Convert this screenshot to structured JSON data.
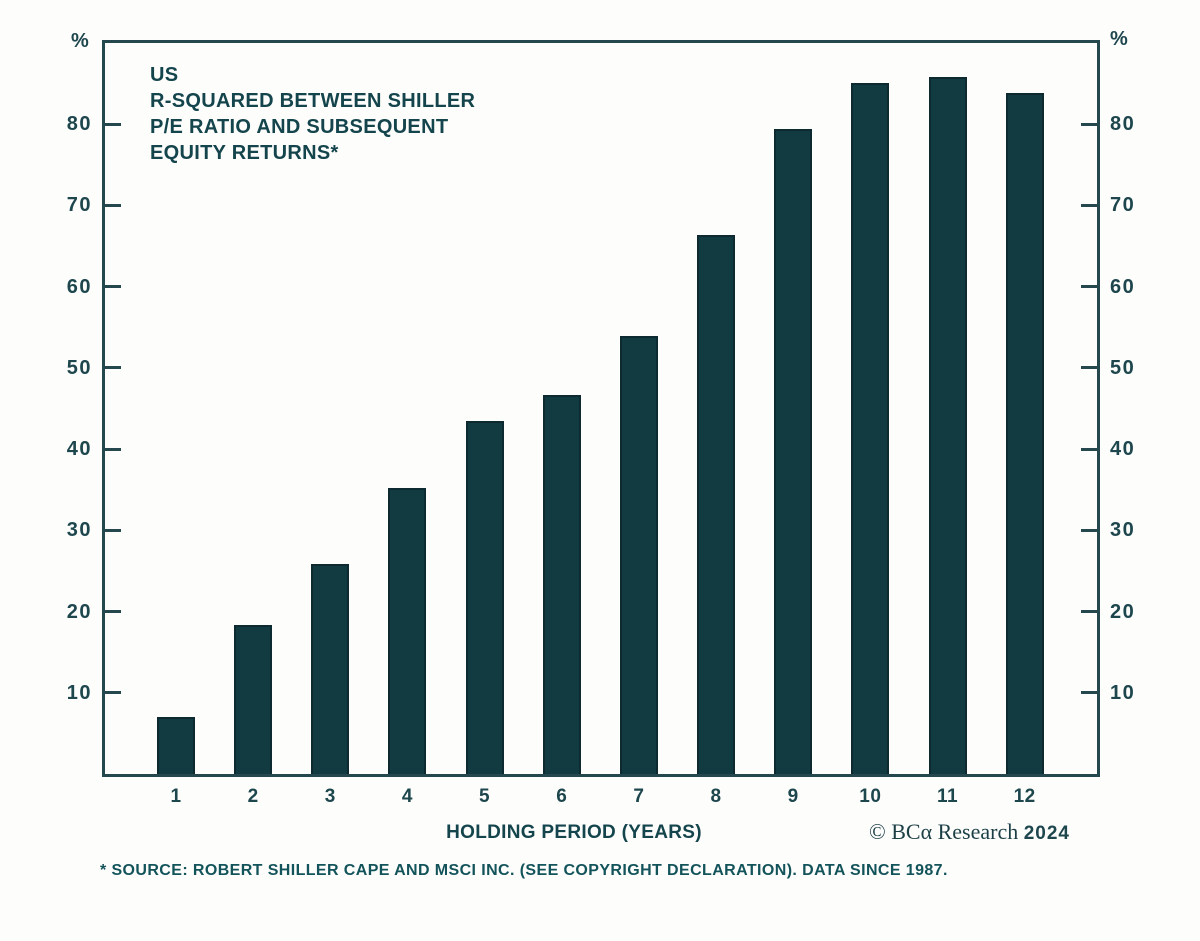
{
  "chart_data": {
    "type": "bar",
    "title_lines": [
      "US",
      "R-SQUARED BETWEEN SHILLER",
      "P/E RATIO AND SUBSEQUENT",
      "EQUITY RETURNS*"
    ],
    "categories": [
      "1",
      "2",
      "3",
      "4",
      "5",
      "6",
      "7",
      "8",
      "9",
      "10",
      "11",
      "12"
    ],
    "values": [
      7.0,
      18.3,
      25.9,
      35.2,
      43.5,
      46.7,
      53.9,
      66.4,
      79.4,
      85.1,
      85.8,
      83.8
    ],
    "xlabel": "HOLDING PERIOD (YEARS)",
    "ylabel_left_unit": "%",
    "ylabel_right_unit": "%",
    "yticks": [
      10,
      20,
      30,
      40,
      50,
      60,
      70,
      80
    ],
    "ylim": [
      0,
      90
    ],
    "grid": false,
    "legend_position": "none",
    "bar_color": "#123a41",
    "bar_border_color": "#0c2a30",
    "axis_color": "#24484e",
    "label_color": "#1d464d"
  },
  "footer": {
    "copyright_text": "© BCα Research",
    "copyright_year": "2024",
    "footnote": "* SOURCE: ROBERT SHILLER CAPE AND MSCI INC. (SEE COPYRIGHT DECLARATION). DATA SINCE 1987."
  }
}
